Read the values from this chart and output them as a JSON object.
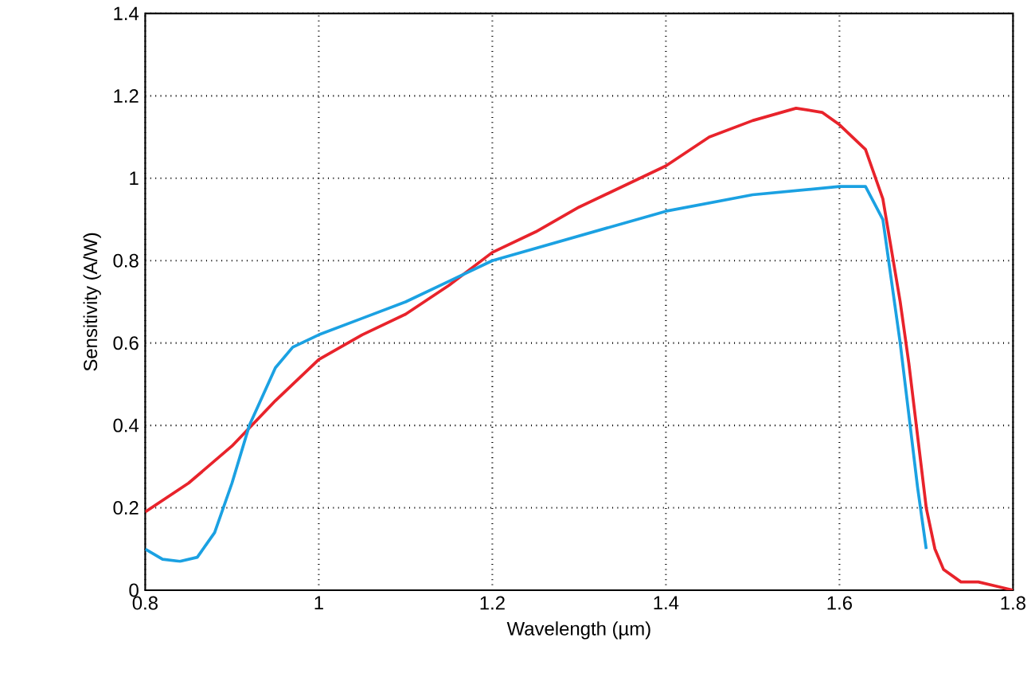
{
  "chart_data": {
    "type": "line",
    "xlabel": "Wavelength (µm)",
    "ylabel": "Sensitivity (A/W)",
    "xlim": [
      0.8,
      1.8
    ],
    "ylim": [
      0,
      1.4
    ],
    "xticks": [
      0.8,
      1,
      1.2,
      1.4,
      1.6,
      1.8
    ],
    "yticks": [
      0,
      0.2,
      0.4,
      0.6,
      0.8,
      1,
      1.2,
      1.4
    ],
    "grid": true,
    "marker": "none",
    "line_style": "solid",
    "series": [
      {
        "color": "#e8232b",
        "x": [
          0.8,
          0.85,
          0.9,
          0.95,
          1.0,
          1.05,
          1.1,
          1.15,
          1.2,
          1.25,
          1.3,
          1.35,
          1.4,
          1.45,
          1.5,
          1.55,
          1.58,
          1.6,
          1.63,
          1.65,
          1.67,
          1.68,
          1.7,
          1.71,
          1.72,
          1.74,
          1.76,
          1.78,
          1.8
        ],
        "values": [
          0.19,
          0.26,
          0.35,
          0.46,
          0.56,
          0.62,
          0.67,
          0.74,
          0.82,
          0.87,
          0.93,
          0.98,
          1.03,
          1.1,
          1.14,
          1.17,
          1.16,
          1.13,
          1.07,
          0.95,
          0.7,
          0.55,
          0.2,
          0.1,
          0.05,
          0.02,
          0.02,
          0.01,
          0.0
        ]
      },
      {
        "color": "#1ba1e2",
        "x": [
          0.8,
          0.82,
          0.84,
          0.86,
          0.88,
          0.9,
          0.92,
          0.95,
          0.97,
          1.0,
          1.05,
          1.1,
          1.15,
          1.2,
          1.3,
          1.4,
          1.5,
          1.6,
          1.63,
          1.65,
          1.67,
          1.69,
          1.7
        ],
        "values": [
          0.1,
          0.075,
          0.07,
          0.08,
          0.14,
          0.26,
          0.4,
          0.54,
          0.59,
          0.62,
          0.66,
          0.7,
          0.75,
          0.8,
          0.86,
          0.92,
          0.96,
          0.98,
          0.98,
          0.9,
          0.6,
          0.25,
          0.1
        ]
      }
    ]
  }
}
